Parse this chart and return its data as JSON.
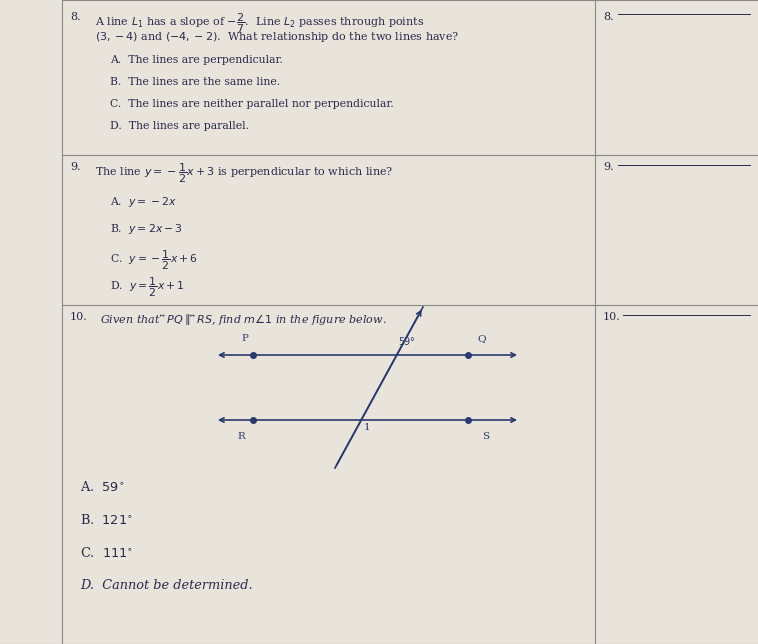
{
  "paper_bg": "#e8e4dc",
  "text_color": "#2a2a4a",
  "line_color": "#2a3a6e",
  "divider_color": "#888888",
  "q8_line1": "8.   A line $L_1$ has a slope of $-\\dfrac{2}{7}$.  Line $L_2$ passes through points",
  "q8_line2": "$(3, -4)$ and $(-4, -2)$.  What relationship do the two lines have?",
  "q8_A": "A.  The lines are perpendicular.",
  "q8_B": "B.  The lines are the same line.",
  "q8_C": "C.  The lines are neither parallel nor perpendicular.",
  "q8_D": "D.  The lines are parallel.",
  "q8_blank": "8.",
  "q9_line1": "9.   The line $y = -\\dfrac{1}{2}x + 3$ is perpendicular to which line?",
  "q9_A": "A.  $y = -2x$",
  "q9_B": "B.  $y = 2x - 3$",
  "q9_C": "C.  $y = -\\dfrac{1}{2}x + 6$",
  "q9_D": "D.  $y = \\dfrac{1}{2}x + 1$",
  "q9_blank": "9.",
  "q10_line1": "10.  Given that $\\overleftrightarrow{PQ} \\parallel \\overleftrightarrow{RS}$, find $m\\angle 1$ in the figure below.",
  "q10_A": "A.  $59^{\\circ}$",
  "q10_B": "B.  $121^{\\circ}$",
  "q10_C": "C.  $111^{\\circ}$",
  "q10_D": "D.  Cannot be determined.",
  "q10_blank": "10.",
  "fs": 8.0,
  "fs_choices": 7.8
}
